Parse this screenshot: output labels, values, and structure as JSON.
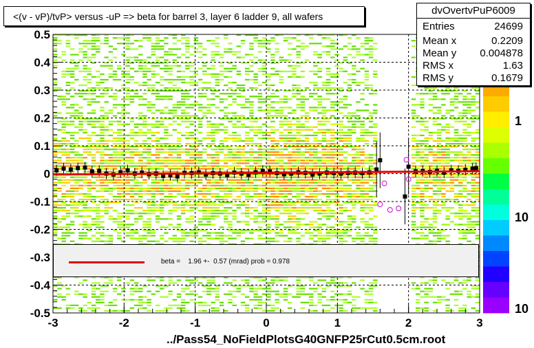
{
  "title": "<(v - vP)/tvP> versus  -uP => beta for barrel 3, layer 6 ladder 9, all wafers",
  "stats": {
    "name": "dvOvertvPuP6009",
    "rows": [
      {
        "label": "Entries",
        "value": "24699"
      },
      {
        "label": "Mean x",
        "value": "0.2209"
      },
      {
        "label": "Mean y",
        "value": "0.004878"
      },
      {
        "label": "RMS x",
        "value": "1.63"
      },
      {
        "label": "RMS y",
        "value": "0.1679"
      }
    ]
  },
  "fit": {
    "text": "beta =    1.96 +-  0.57 (mrad) prob = 0.978",
    "line_color": "#e00000"
  },
  "footer": "../Pass54_NoFieldPlotsG40GNFP25rCut0.5cm.root",
  "chart_data": {
    "type": "heatmap",
    "title": "<(v - vP)/tvP> versus  -uP => beta for barrel 3, layer 6 ladder 9, all wafers",
    "xlim": [
      -3,
      3
    ],
    "ylim": [
      -0.5,
      0.5
    ],
    "x_ticks": [
      "-3",
      "-2",
      "-1",
      "0",
      "1",
      "2",
      "3"
    ],
    "y_ticks": [
      "-0.5",
      "-0.4",
      "-0.3",
      "-0.2",
      "-0.1",
      "0",
      "0.1",
      "0.2",
      "0.3",
      "0.4",
      "0.5"
    ],
    "grid": true,
    "colorbar_labels": [
      "1",
      "10",
      "10"
    ],
    "empty_x_ranges": [
      [
        1.55,
        2.05
      ]
    ],
    "profile_points": [
      {
        "x": -2.95,
        "y": 0.012
      },
      {
        "x": -2.85,
        "y": 0.018
      },
      {
        "x": -2.75,
        "y": 0.015
      },
      {
        "x": -2.65,
        "y": 0.02
      },
      {
        "x": -2.55,
        "y": 0.022
      },
      {
        "x": -2.45,
        "y": 0.008
      },
      {
        "x": -2.35,
        "y": 0.01
      },
      {
        "x": -2.25,
        "y": 0.0
      },
      {
        "x": -2.15,
        "y": -0.003
      },
      {
        "x": -2.05,
        "y": 0.005
      },
      {
        "x": -1.95,
        "y": 0.012
      },
      {
        "x": -1.85,
        "y": 0.0
      },
      {
        "x": -1.75,
        "y": 0.004
      },
      {
        "x": -1.65,
        "y": -0.002
      },
      {
        "x": -1.55,
        "y": 0.0
      },
      {
        "x": -1.45,
        "y": -0.008
      },
      {
        "x": -1.35,
        "y": -0.005
      },
      {
        "x": -1.25,
        "y": -0.01
      },
      {
        "x": -1.15,
        "y": 0.003
      },
      {
        "x": -1.05,
        "y": 0.002
      },
      {
        "x": -0.95,
        "y": 0.005
      },
      {
        "x": -0.85,
        "y": -0.003
      },
      {
        "x": -0.75,
        "y": 0.002
      },
      {
        "x": -0.65,
        "y": 0.0
      },
      {
        "x": -0.55,
        "y": -0.005
      },
      {
        "x": -0.45,
        "y": 0.004
      },
      {
        "x": -0.35,
        "y": 0.0
      },
      {
        "x": -0.25,
        "y": -0.004
      },
      {
        "x": -0.15,
        "y": 0.005
      },
      {
        "x": -0.05,
        "y": 0.01
      },
      {
        "x": 0.05,
        "y": 0.008
      },
      {
        "x": 0.15,
        "y": 0.002
      },
      {
        "x": 0.25,
        "y": -0.002
      },
      {
        "x": 0.35,
        "y": 0.0
      },
      {
        "x": 0.45,
        "y": 0.005
      },
      {
        "x": 0.55,
        "y": 0.003
      },
      {
        "x": 0.65,
        "y": -0.003
      },
      {
        "x": 0.75,
        "y": 0.0
      },
      {
        "x": 0.85,
        "y": 0.004
      },
      {
        "x": 0.95,
        "y": 0.002
      },
      {
        "x": 1.05,
        "y": 0.0
      },
      {
        "x": 1.15,
        "y": 0.003
      },
      {
        "x": 1.25,
        "y": 0.004
      },
      {
        "x": 1.35,
        "y": 0.002
      },
      {
        "x": 1.45,
        "y": 0.005
      },
      {
        "x": 1.55,
        "y": 0.015
      },
      {
        "x": 1.6,
        "y": 0.048
      },
      {
        "x": 1.95,
        "y": -0.082
      },
      {
        "x": 2.0,
        "y": 0.025
      },
      {
        "x": 2.1,
        "y": 0.008
      },
      {
        "x": 2.2,
        "y": 0.01
      },
      {
        "x": 2.3,
        "y": 0.006
      },
      {
        "x": 2.4,
        "y": 0.01
      },
      {
        "x": 2.5,
        "y": 0.004
      },
      {
        "x": 2.6,
        "y": 0.012
      },
      {
        "x": 2.7,
        "y": 0.01
      },
      {
        "x": 2.8,
        "y": 0.014
      },
      {
        "x": 2.9,
        "y": 0.018
      },
      {
        "x": 2.95,
        "y": 0.02
      }
    ],
    "outlier_points": [
      {
        "x": 1.6,
        "y": -0.11
      },
      {
        "x": 1.66,
        "y": -0.035
      },
      {
        "x": 1.74,
        "y": -0.13
      },
      {
        "x": 1.86,
        "y": -0.125
      },
      {
        "x": 1.97,
        "y": 0.05
      },
      {
        "x": 2.0,
        "y": -0.02
      }
    ],
    "fit_line": {
      "x": [
        -3,
        3
      ],
      "y": [
        -0.003,
        0.009
      ]
    }
  }
}
